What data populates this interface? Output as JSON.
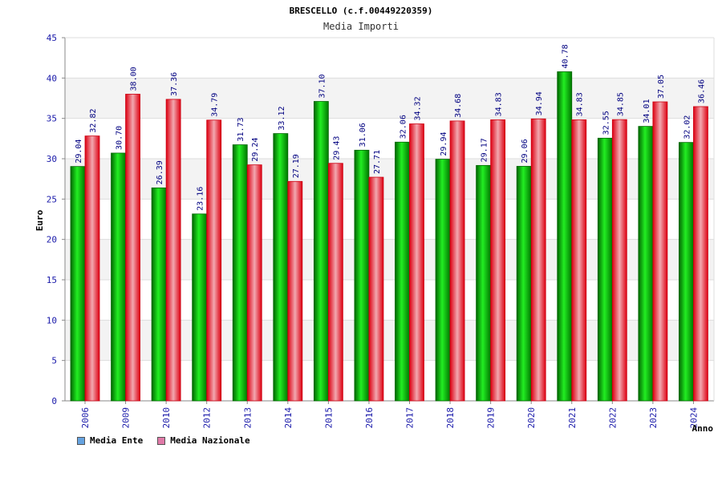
{
  "chart_data": {
    "type": "bar",
    "title": "BRESCELLO (c.f.00449220359)",
    "subtitle": "Media Importi",
    "xlabel": "Anno",
    "ylabel": "Euro",
    "ylim": [
      0,
      45
    ],
    "yticks": [
      0,
      5,
      10,
      15,
      20,
      25,
      30,
      35,
      40,
      45
    ],
    "categories": [
      "2006",
      "2009",
      "2010",
      "2012",
      "2013",
      "2014",
      "2015",
      "2016",
      "2017",
      "2018",
      "2019",
      "2020",
      "2021",
      "2022",
      "2023",
      "2024"
    ],
    "series": [
      {
        "name": "Media Ente",
        "color": "#00aa00",
        "legend_color": "#66a3e0",
        "values": [
          29.04,
          30.7,
          26.39,
          23.16,
          31.73,
          33.12,
          37.1,
          31.06,
          32.06,
          29.94,
          29.17,
          29.06,
          40.78,
          32.55,
          34.01,
          32.02
        ],
        "labels": [
          "29.04",
          "30.70",
          "26.39",
          "23.16",
          "31.73",
          "33.12",
          "37.10",
          "31.06",
          "32.06",
          "29.94",
          "29.17",
          "29.06",
          "40.78",
          "32.55",
          "34.01",
          "32.02"
        ]
      },
      {
        "name": "Media Nazionale",
        "color": "#ee2233",
        "legend_color": "#e07aa8",
        "values": [
          32.82,
          38.0,
          37.36,
          34.79,
          29.24,
          27.19,
          29.43,
          27.71,
          34.32,
          34.68,
          34.83,
          34.94,
          34.83,
          34.85,
          37.05,
          36.46
        ],
        "labels": [
          "32.82",
          "38.00",
          "37.36",
          "34.79",
          "29.24",
          "27.19",
          "29.43",
          "27.71",
          "34.32",
          "34.68",
          "34.83",
          "34.94",
          "34.83",
          "34.85",
          "37.05",
          "36.46"
        ]
      }
    ],
    "grid": true,
    "legend_position": "bottom-left"
  }
}
